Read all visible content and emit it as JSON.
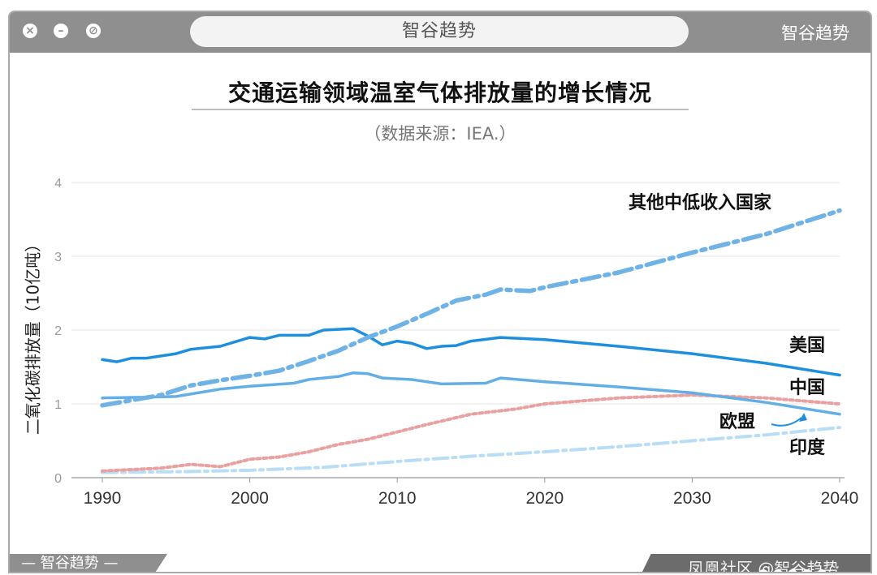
{
  "window": {
    "url_text": "智谷趋势",
    "brand": "智谷趋势",
    "close_icon": "close-icon",
    "minimize_icon": "minimize-icon",
    "block_icon": "block-icon"
  },
  "footer": {
    "brand_left": "— 智谷趋势 —",
    "watermark": "凤凰社区 @智谷趋势"
  },
  "chart_data": {
    "type": "line",
    "title": "交通运输领域温室气体排放量的增长情况",
    "subtitle": "（数据来源：IEA.）",
    "xlabel": "",
    "ylabel": "二氧化碳排放量（10亿吨）",
    "xlim": [
      1990,
      2040
    ],
    "ylim": [
      0,
      4
    ],
    "x_ticks": [
      "1990",
      "2000",
      "2010",
      "2020",
      "2030",
      "2040"
    ],
    "y_ticks": [
      "0",
      "1",
      "2",
      "3",
      "4"
    ],
    "grid": true,
    "series": [
      {
        "name": "其他中低收入国家",
        "color": "#6fb3e6",
        "style": "dashdot-thick",
        "points": [
          [
            1990,
            0.98
          ],
          [
            1992,
            1.05
          ],
          [
            1994,
            1.12
          ],
          [
            1996,
            1.25
          ],
          [
            1998,
            1.32
          ],
          [
            2000,
            1.38
          ],
          [
            2002,
            1.45
          ],
          [
            2004,
            1.58
          ],
          [
            2006,
            1.72
          ],
          [
            2008,
            1.9
          ],
          [
            2010,
            2.05
          ],
          [
            2012,
            2.22
          ],
          [
            2014,
            2.4
          ],
          [
            2016,
            2.48
          ],
          [
            2017,
            2.55
          ],
          [
            2019,
            2.53
          ],
          [
            2020,
            2.58
          ],
          [
            2025,
            2.78
          ],
          [
            2030,
            3.05
          ],
          [
            2035,
            3.3
          ],
          [
            2040,
            3.62
          ]
        ]
      },
      {
        "name": "美国",
        "color": "#1e8fdc",
        "style": "solid",
        "points": [
          [
            1990,
            1.6
          ],
          [
            1991,
            1.57
          ],
          [
            1992,
            1.62
          ],
          [
            1993,
            1.62
          ],
          [
            1995,
            1.68
          ],
          [
            1996,
            1.74
          ],
          [
            1998,
            1.78
          ],
          [
            2000,
            1.9
          ],
          [
            2001,
            1.88
          ],
          [
            2002,
            1.93
          ],
          [
            2004,
            1.93
          ],
          [
            2005,
            2.0
          ],
          [
            2007,
            2.02
          ],
          [
            2008,
            1.92
          ],
          [
            2009,
            1.8
          ],
          [
            2010,
            1.85
          ],
          [
            2011,
            1.82
          ],
          [
            2012,
            1.75
          ],
          [
            2013,
            1.78
          ],
          [
            2014,
            1.79
          ],
          [
            2015,
            1.85
          ],
          [
            2017,
            1.9
          ],
          [
            2020,
            1.87
          ],
          [
            2025,
            1.78
          ],
          [
            2030,
            1.68
          ],
          [
            2035,
            1.55
          ],
          [
            2040,
            1.39
          ]
        ]
      },
      {
        "name": "中国",
        "color": "#62aee6",
        "style": "solid",
        "points": [
          [
            1990,
            1.08
          ],
          [
            1993,
            1.09
          ],
          [
            1995,
            1.1
          ],
          [
            1998,
            1.2
          ],
          [
            2000,
            1.24
          ],
          [
            2003,
            1.28
          ],
          [
            2004,
            1.33
          ],
          [
            2006,
            1.37
          ],
          [
            2007,
            1.42
          ],
          [
            2008,
            1.41
          ],
          [
            2009,
            1.35
          ],
          [
            2011,
            1.33
          ],
          [
            2012,
            1.3
          ],
          [
            2013,
            1.27
          ],
          [
            2016,
            1.28
          ],
          [
            2017,
            1.35
          ],
          [
            2020,
            1.3
          ],
          [
            2025,
            1.23
          ],
          [
            2030,
            1.15
          ],
          [
            2035,
            1.02
          ],
          [
            2040,
            0.86
          ]
        ]
      },
      {
        "name": "欧盟",
        "color": "#e8a0a0",
        "style": "dotted",
        "points": [
          [
            1990,
            0.09
          ],
          [
            1992,
            0.11
          ],
          [
            1994,
            0.13
          ],
          [
            1996,
            0.18
          ],
          [
            1998,
            0.15
          ],
          [
            2000,
            0.25
          ],
          [
            2002,
            0.28
          ],
          [
            2004,
            0.35
          ],
          [
            2006,
            0.45
          ],
          [
            2008,
            0.52
          ],
          [
            2010,
            0.62
          ],
          [
            2012,
            0.72
          ],
          [
            2015,
            0.86
          ],
          [
            2018,
            0.93
          ],
          [
            2020,
            1.0
          ],
          [
            2025,
            1.08
          ],
          [
            2030,
            1.12
          ],
          [
            2035,
            1.08
          ],
          [
            2040,
            1.0
          ]
        ]
      },
      {
        "name": "印度",
        "color": "#b9ddf4",
        "style": "dashdot",
        "points": [
          [
            1990,
            0.07
          ],
          [
            1995,
            0.08
          ],
          [
            2000,
            0.1
          ],
          [
            2005,
            0.14
          ],
          [
            2010,
            0.22
          ],
          [
            2015,
            0.29
          ],
          [
            2020,
            0.35
          ],
          [
            2025,
            0.42
          ],
          [
            2030,
            0.5
          ],
          [
            2035,
            0.58
          ],
          [
            2040,
            0.68
          ]
        ]
      }
    ],
    "annotations": [
      {
        "text": "其他中低收入国家",
        "series": "其他中低收入国家"
      },
      {
        "text": "美国",
        "series": "美国"
      },
      {
        "text": "中国",
        "series": "中国"
      },
      {
        "text": "欧盟",
        "series": "欧盟",
        "arrow": true
      },
      {
        "text": "印度",
        "series": "印度"
      }
    ]
  }
}
